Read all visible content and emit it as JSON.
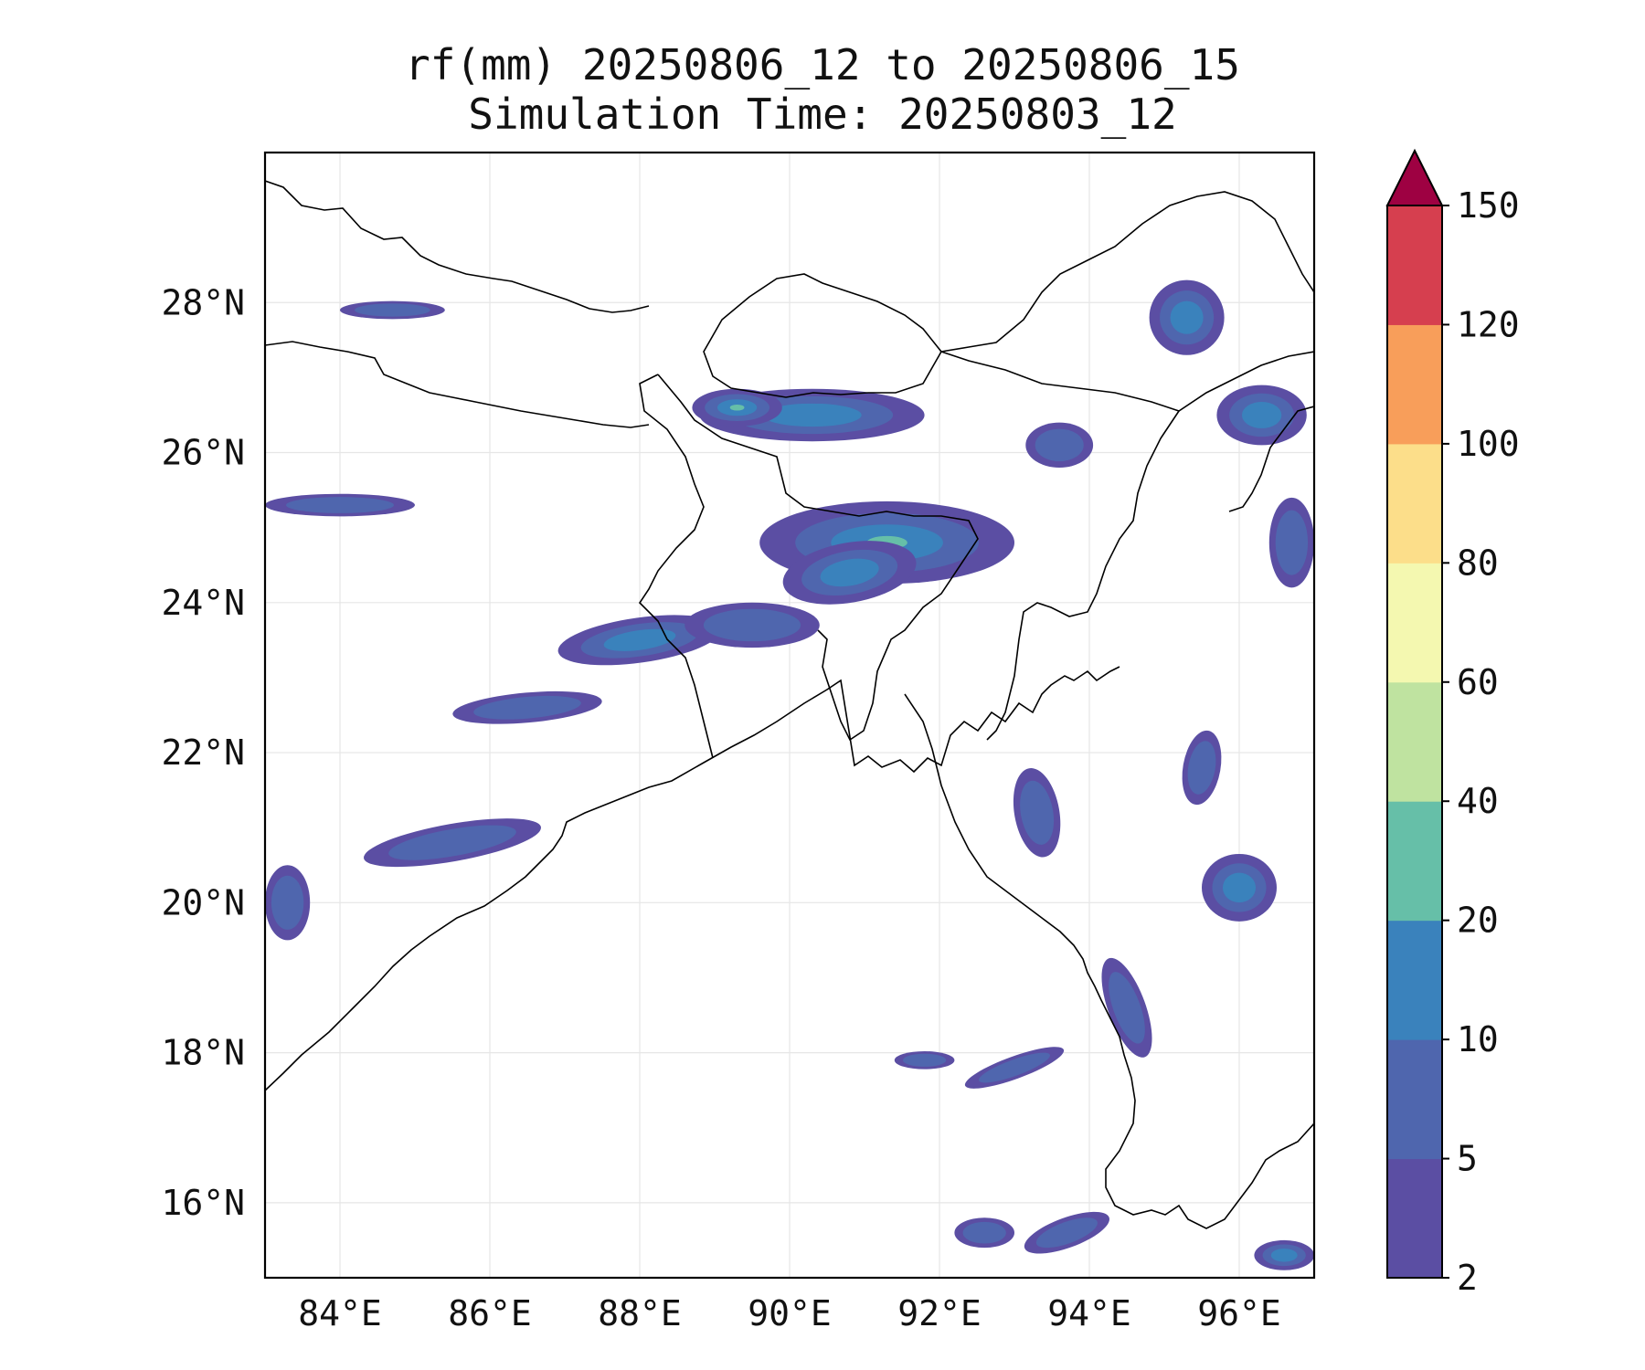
{
  "title": {
    "line1": "rf(mm) 20250806_12 to 20250806_15",
    "line2": "Simulation Time: 20250803_12"
  },
  "map": {
    "lon_range": [
      83.0,
      97.0
    ],
    "lat_range": [
      15.0,
      30.0
    ],
    "x_ticks": [
      {
        "value": 84,
        "label": "84°E"
      },
      {
        "value": 86,
        "label": "86°E"
      },
      {
        "value": 88,
        "label": "88°E"
      },
      {
        "value": 90,
        "label": "90°E"
      },
      {
        "value": 92,
        "label": "92°E"
      },
      {
        "value": 94,
        "label": "94°E"
      },
      {
        "value": 96,
        "label": "96°E"
      }
    ],
    "y_ticks": [
      {
        "value": 16,
        "label": "16°N"
      },
      {
        "value": 18,
        "label": "18°N"
      },
      {
        "value": 20,
        "label": "20°N"
      },
      {
        "value": 22,
        "label": "22°N"
      },
      {
        "value": 24,
        "label": "24°N"
      },
      {
        "value": 26,
        "label": "26°N"
      },
      {
        "value": 28,
        "label": "28°N"
      }
    ],
    "gridlines": true
  },
  "colorbar": {
    "levels": [
      {
        "label": "2"
      },
      {
        "label": "5"
      },
      {
        "label": "10"
      },
      {
        "label": "20"
      },
      {
        "label": "40"
      },
      {
        "label": "60"
      },
      {
        "label": "80"
      },
      {
        "label": "100"
      },
      {
        "label": "120"
      },
      {
        "label": "150"
      }
    ],
    "colors": [
      "#5b4ea3",
      "#4f66ae",
      "#3a82bc",
      "#66bfa8",
      "#bfe3a0",
      "#f4f8b0",
      "#fcde8a",
      "#f89e5a",
      "#d63f4f"
    ],
    "extend_color": "#9e0142",
    "extend": "max"
  },
  "rain_areas": [
    {
      "lon": 91.3,
      "lat": 24.8,
      "rx": 1.7,
      "ry": 0.55,
      "rot": 0,
      "level": 3
    },
    {
      "lon": 90.8,
      "lat": 24.4,
      "rx": 0.9,
      "ry": 0.4,
      "rot": -10,
      "level": 2
    },
    {
      "lon": 90.3,
      "lat": 26.5,
      "rx": 1.5,
      "ry": 0.35,
      "rot": 0,
      "level": 2
    },
    {
      "lon": 89.3,
      "lat": 26.6,
      "rx": 0.6,
      "ry": 0.25,
      "rot": 0,
      "level": 3
    },
    {
      "lon": 88.0,
      "lat": 23.5,
      "rx": 1.1,
      "ry": 0.3,
      "rot": -8,
      "level": 2
    },
    {
      "lon": 89.5,
      "lat": 23.7,
      "rx": 0.9,
      "ry": 0.3,
      "rot": 0,
      "level": 1
    },
    {
      "lon": 93.6,
      "lat": 26.1,
      "rx": 0.45,
      "ry": 0.3,
      "rot": 0,
      "level": 1
    },
    {
      "lon": 95.3,
      "lat": 27.8,
      "rx": 0.5,
      "ry": 0.5,
      "rot": 0,
      "level": 2
    },
    {
      "lon": 96.3,
      "lat": 26.5,
      "rx": 0.6,
      "ry": 0.4,
      "rot": 0,
      "level": 2
    },
    {
      "lon": 96.7,
      "lat": 24.8,
      "rx": 0.3,
      "ry": 0.6,
      "rot": 0,
      "level": 1
    },
    {
      "lon": 96.0,
      "lat": 20.2,
      "rx": 0.5,
      "ry": 0.45,
      "rot": 0,
      "level": 2
    },
    {
      "lon": 94.5,
      "lat": 18.6,
      "rx": 0.25,
      "ry": 0.7,
      "rot": -20,
      "level": 1
    },
    {
      "lon": 93.3,
      "lat": 21.2,
      "rx": 0.3,
      "ry": 0.6,
      "rot": -10,
      "level": 1
    },
    {
      "lon": 85.5,
      "lat": 20.8,
      "rx": 1.2,
      "ry": 0.25,
      "rot": -10,
      "level": 1
    },
    {
      "lon": 84.0,
      "lat": 25.3,
      "rx": 1.0,
      "ry": 0.15,
      "rot": 0,
      "level": 1
    },
    {
      "lon": 86.5,
      "lat": 22.6,
      "rx": 1.0,
      "ry": 0.2,
      "rot": -5,
      "level": 1
    },
    {
      "lon": 84.7,
      "lat": 27.9,
      "rx": 0.7,
      "ry": 0.12,
      "rot": 0,
      "level": 1
    },
    {
      "lon": 92.6,
      "lat": 15.6,
      "rx": 0.4,
      "ry": 0.2,
      "rot": 0,
      "level": 1
    },
    {
      "lon": 96.6,
      "lat": 15.3,
      "rx": 0.4,
      "ry": 0.2,
      "rot": 0,
      "level": 2
    },
    {
      "lon": 83.3,
      "lat": 20.0,
      "rx": 0.3,
      "ry": 0.5,
      "rot": 0,
      "level": 1
    },
    {
      "lon": 93.0,
      "lat": 17.8,
      "rx": 0.7,
      "ry": 0.15,
      "rot": -20,
      "level": 1
    },
    {
      "lon": 91.8,
      "lat": 17.9,
      "rx": 0.4,
      "ry": 0.12,
      "rot": 0,
      "level": 1
    },
    {
      "lon": 95.5,
      "lat": 21.8,
      "rx": 0.25,
      "ry": 0.5,
      "rot": 10,
      "level": 1
    },
    {
      "lon": 93.7,
      "lat": 15.6,
      "rx": 0.6,
      "ry": 0.2,
      "rot": -20,
      "level": 1
    }
  ]
}
